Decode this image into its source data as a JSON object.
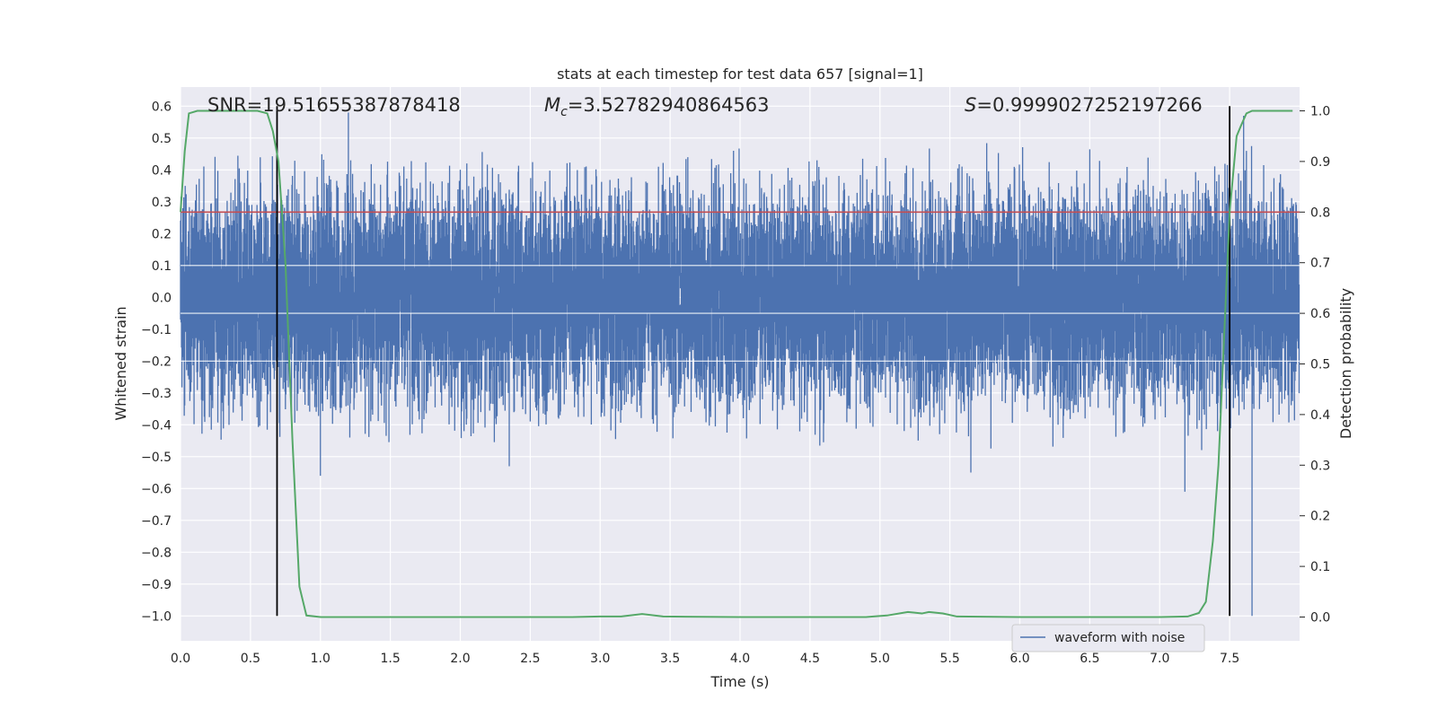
{
  "chart_data": {
    "type": "line",
    "title": "stats at each timestep for test data 657 [signal=1]",
    "xlabel": "Time (s)",
    "ylabel_left": "Whitened strain",
    "ylabel_right": "Detection probability",
    "xlim": [
      0.0,
      8.0
    ],
    "ylim_left": [
      -1.078,
      0.66
    ],
    "ylim_right": [
      -0.047,
      1.047
    ],
    "x_ticks": [
      0.0,
      0.5,
      1.0,
      1.5,
      2.0,
      2.5,
      3.0,
      3.5,
      4.0,
      4.5,
      5.0,
      5.5,
      6.0,
      6.5,
      7.0,
      7.5
    ],
    "x_tick_labels": [
      "0.0",
      "0.5",
      "1.0",
      "1.5",
      "2.0",
      "2.5",
      "3.0",
      "3.5",
      "4.0",
      "4.5",
      "5.0",
      "5.5",
      "6.0",
      "6.5",
      "7.0",
      "7.5"
    ],
    "y_left_ticks": [
      0.6,
      0.5,
      0.4,
      0.3,
      0.2,
      0.1,
      0.0,
      -0.1,
      -0.2,
      -0.3,
      -0.4,
      -0.5,
      -0.6,
      -0.7,
      -0.8,
      -0.9,
      -1.0
    ],
    "y_left_tick_labels": [
      "0.6",
      "0.5",
      "0.4",
      "0.3",
      "0.2",
      "0.1",
      "0.0",
      "−0.1",
      "−0.2",
      "−0.3",
      "−0.4",
      "−0.5",
      "−0.6",
      "−0.7",
      "−0.8",
      "−0.9",
      "−1.0"
    ],
    "y_right_ticks": [
      1.0,
      0.9,
      0.8,
      0.7,
      0.6,
      0.5,
      0.4,
      0.3,
      0.2,
      0.1,
      0.0
    ],
    "y_right_tick_labels": [
      "1.0",
      "0.9",
      "0.8",
      "0.7",
      "0.6",
      "0.5",
      "0.4",
      "0.3",
      "0.2",
      "0.1",
      "0.0"
    ],
    "grid": true,
    "legend": {
      "placement": "lower-right",
      "entries": [
        "waveform with noise"
      ]
    },
    "annotations": {
      "snr": "SNR=19.51655387878418",
      "mc_symbol": "M",
      "mc_subscript": "c",
      "mc_value": "=3.52782940864563",
      "s_symbol": "S",
      "s_value": "=0.9999027252197266"
    },
    "series": [
      {
        "name": "waveform with noise",
        "axis": "left",
        "color": "#4c72b0",
        "kind": "dense-noise",
        "x_range": [
          0.0,
          8.0
        ],
        "approx_envelope": [
          -0.3,
          0.3
        ],
        "notable_peaks": [
          {
            "x": 1.2,
            "y": 0.58
          },
          {
            "x": 1.0,
            "y": -0.56
          },
          {
            "x": 2.35,
            "y": -0.53
          },
          {
            "x": 5.65,
            "y": -0.55
          },
          {
            "x": 7.18,
            "y": -0.61
          },
          {
            "x": 7.5,
            "y": 0.55
          },
          {
            "x": 7.6,
            "y": 0.57
          },
          {
            "x": 7.66,
            "y": -1.0
          }
        ]
      },
      {
        "name": "",
        "axis": "right",
        "color": "#55a868",
        "kind": "line",
        "x": [
          0.0,
          0.03,
          0.06,
          0.12,
          0.2,
          0.4,
          0.55,
          0.62,
          0.66,
          0.7,
          0.75,
          0.8,
          0.85,
          0.9,
          1.0,
          1.5,
          2.0,
          2.5,
          2.8,
          3.0,
          3.15,
          3.3,
          3.45,
          4.0,
          4.5,
          4.9,
          5.05,
          5.2,
          5.3,
          5.35,
          5.45,
          5.55,
          6.0,
          6.5,
          7.0,
          7.2,
          7.28,
          7.33,
          7.38,
          7.42,
          7.46,
          7.5,
          7.55,
          7.58,
          7.62,
          7.66,
          7.7,
          7.8,
          7.95
        ],
        "y": [
          0.8,
          0.92,
          0.995,
          1.0,
          1.0,
          1.0,
          1.0,
          0.995,
          0.96,
          0.9,
          0.7,
          0.35,
          0.06,
          0.003,
          0.0,
          0.0,
          0.0,
          0.0,
          0.0,
          0.001,
          0.001,
          0.006,
          0.001,
          0.0,
          0.0,
          0.0,
          0.003,
          0.01,
          0.007,
          0.01,
          0.007,
          0.001,
          0.0,
          0.0,
          0.0,
          0.001,
          0.008,
          0.03,
          0.15,
          0.3,
          0.55,
          0.8,
          0.95,
          0.97,
          0.995,
          1.0,
          1.0,
          1.0,
          1.0
        ]
      }
    ],
    "threshold_line": {
      "axis": "right",
      "y": 0.8,
      "color": "#c44e52"
    },
    "vertical_lines": [
      {
        "x": 0.69,
        "color": "#000000",
        "ymin": -1.0,
        "ymax": 0.6
      },
      {
        "x": 7.5,
        "color": "#000000",
        "ymin": -1.0,
        "ymax": 0.6
      }
    ]
  }
}
